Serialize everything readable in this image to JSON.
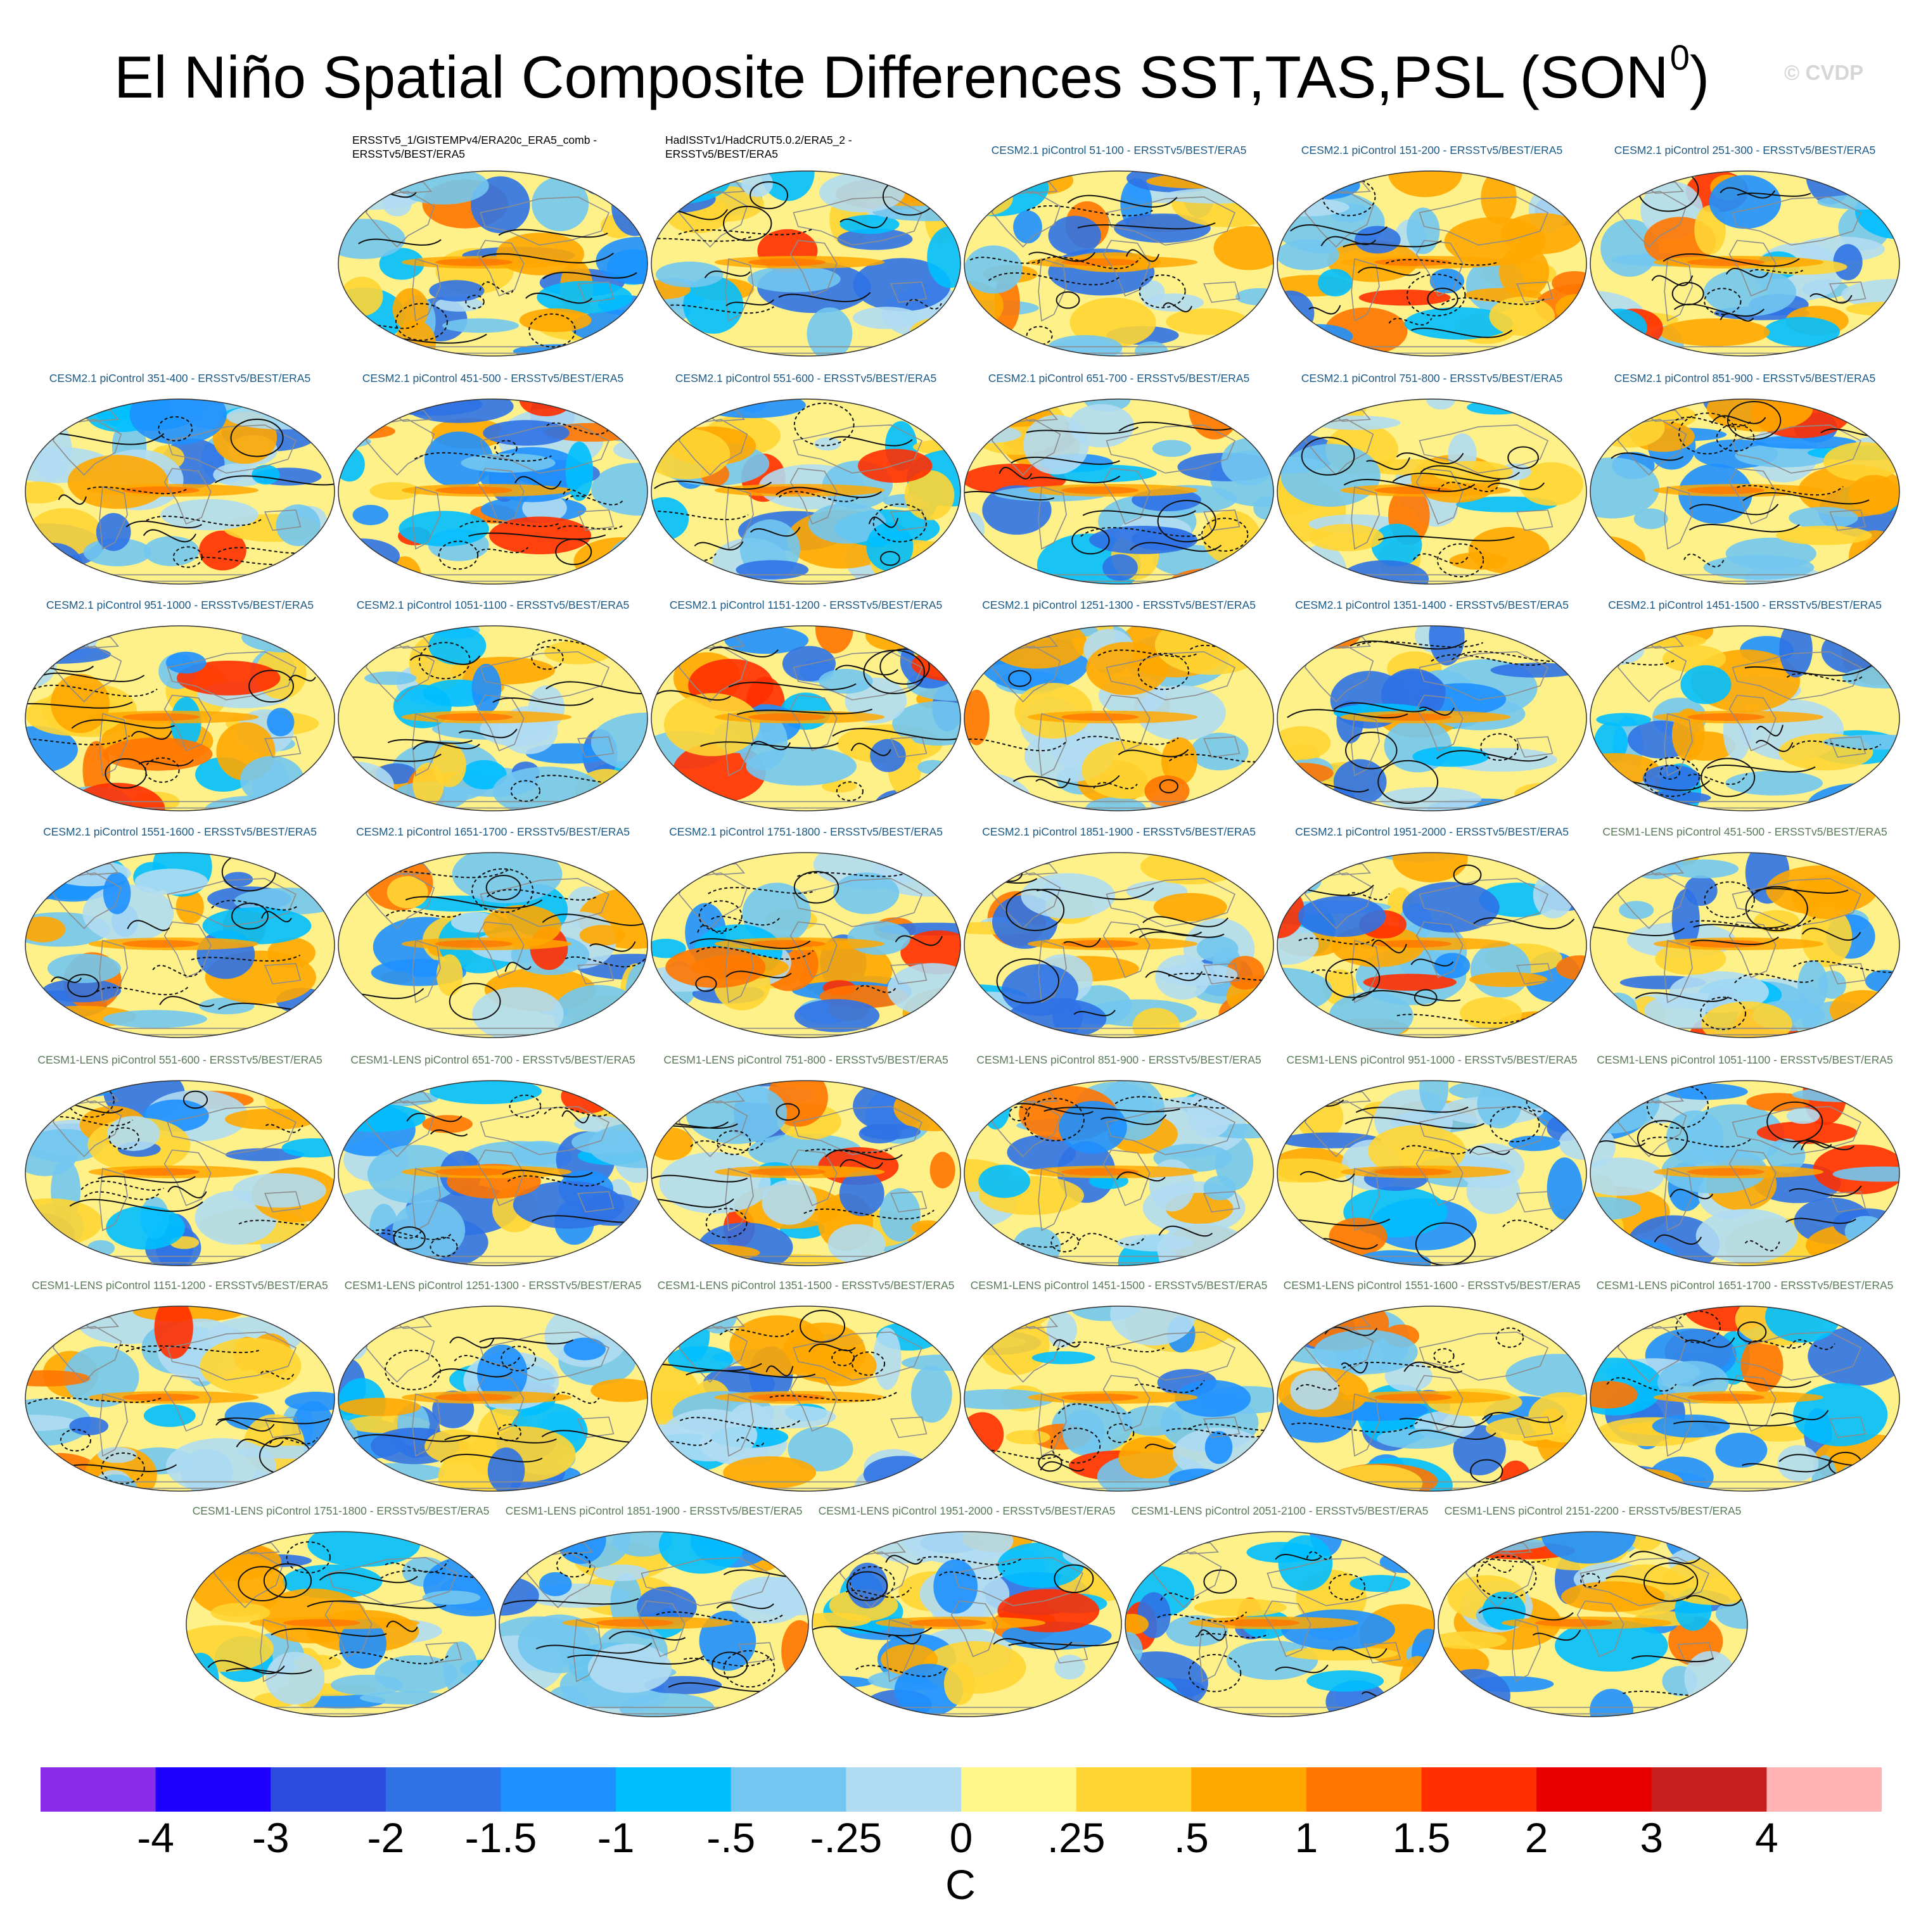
{
  "title": "El Niño Spatial Composite Differences SST,TAS,PSL (SON",
  "title_superscript": "0",
  "title_suffix": ")",
  "watermark": "© CVDP",
  "colors": {
    "cesm2_title": "#1c5a86",
    "cesm1_title": "#5a7a5a",
    "obs_title": "#000000",
    "ocean_base": "#fef18a",
    "land": "#ffffff",
    "coast": "#8c8c8c",
    "contour": "#111111"
  },
  "panels": [
    {
      "title": "",
      "empty": true
    },
    {
      "title": "ERSSTv5_1/GISTEMPv4/ERA20c_ERA5_comb - ERSSTv5/BEST/ERA5",
      "group": "obs",
      "seed": 11
    },
    {
      "title": "HadISSTv1/HadCRUT5.0.2/ERA5_2 - ERSSTv5/BEST/ERA5",
      "group": "obs",
      "seed": 12
    },
    {
      "title": "CESM2.1 piControl 51-100 - ERSSTv5/BEST/ERA5",
      "group": "cesm2",
      "seed": 13
    },
    {
      "title": "CESM2.1 piControl 151-200 - ERSSTv5/BEST/ERA5",
      "group": "cesm2",
      "seed": 14
    },
    {
      "title": "CESM2.1 piControl 251-300 - ERSSTv5/BEST/ERA5",
      "group": "cesm2",
      "seed": 15
    },
    {
      "title": "CESM2.1 piControl 351-400 - ERSSTv5/BEST/ERA5",
      "group": "cesm2",
      "seed": 16
    },
    {
      "title": "CESM2.1 piControl 451-500 - ERSSTv5/BEST/ERA5",
      "group": "cesm2",
      "seed": 17
    },
    {
      "title": "CESM2.1 piControl 551-600 - ERSSTv5/BEST/ERA5",
      "group": "cesm2",
      "seed": 18
    },
    {
      "title": "CESM2.1 piControl 651-700 - ERSSTv5/BEST/ERA5",
      "group": "cesm2",
      "seed": 19
    },
    {
      "title": "CESM2.1 piControl 751-800 - ERSSTv5/BEST/ERA5",
      "group": "cesm2",
      "seed": 20
    },
    {
      "title": "CESM2.1 piControl 851-900 - ERSSTv5/BEST/ERA5",
      "group": "cesm2",
      "seed": 21
    },
    {
      "title": "CESM2.1 piControl 951-1000 - ERSSTv5/BEST/ERA5",
      "group": "cesm2",
      "seed": 22
    },
    {
      "title": "CESM2.1 piControl 1051-1100 - ERSSTv5/BEST/ERA5",
      "group": "cesm2",
      "seed": 23
    },
    {
      "title": "CESM2.1 piControl 1151-1200 - ERSSTv5/BEST/ERA5",
      "group": "cesm2",
      "seed": 24
    },
    {
      "title": "CESM2.1 piControl 1251-1300 - ERSSTv5/BEST/ERA5",
      "group": "cesm2",
      "seed": 25
    },
    {
      "title": "CESM2.1 piControl 1351-1400 - ERSSTv5/BEST/ERA5",
      "group": "cesm2",
      "seed": 26
    },
    {
      "title": "CESM2.1 piControl 1451-1500 - ERSSTv5/BEST/ERA5",
      "group": "cesm2",
      "seed": 27
    },
    {
      "title": "CESM2.1 piControl 1551-1600 - ERSSTv5/BEST/ERA5",
      "group": "cesm2",
      "seed": 28
    },
    {
      "title": "CESM2.1 piControl 1651-1700 - ERSSTv5/BEST/ERA5",
      "group": "cesm2",
      "seed": 29
    },
    {
      "title": "CESM2.1 piControl 1751-1800 - ERSSTv5/BEST/ERA5",
      "group": "cesm2",
      "seed": 30
    },
    {
      "title": "CESM2.1 piControl 1851-1900 - ERSSTv5/BEST/ERA5",
      "group": "cesm2",
      "seed": 31
    },
    {
      "title": "CESM2.1 piControl 1951-2000 - ERSSTv5/BEST/ERA5",
      "group": "cesm2",
      "seed": 32
    },
    {
      "title": "CESM1-LENS piControl 451-500 - ERSSTv5/BEST/ERA5",
      "group": "cesm1",
      "seed": 33
    },
    {
      "title": "CESM1-LENS piControl 551-600 - ERSSTv5/BEST/ERA5",
      "group": "cesm1",
      "seed": 34
    },
    {
      "title": "CESM1-LENS piControl 651-700 - ERSSTv5/BEST/ERA5",
      "group": "cesm1",
      "seed": 35
    },
    {
      "title": "CESM1-LENS piControl 751-800 - ERSSTv5/BEST/ERA5",
      "group": "cesm1",
      "seed": 36
    },
    {
      "title": "CESM1-LENS piControl 851-900 - ERSSTv5/BEST/ERA5",
      "group": "cesm1",
      "seed": 37
    },
    {
      "title": "CESM1-LENS piControl 951-1000 - ERSSTv5/BEST/ERA5",
      "group": "cesm1",
      "seed": 38
    },
    {
      "title": "CESM1-LENS piControl 1051-1100 - ERSSTv5/BEST/ERA5",
      "group": "cesm1",
      "seed": 39
    },
    {
      "title": "CESM1-LENS piControl 1151-1200 - ERSSTv5/BEST/ERA5",
      "group": "cesm1",
      "seed": 40
    },
    {
      "title": "CESM1-LENS piControl 1251-1300 - ERSSTv5/BEST/ERA5",
      "group": "cesm1",
      "seed": 41
    },
    {
      "title": "CESM1-LENS piControl 1351-1500 - ERSSTv5/BEST/ERA5",
      "group": "cesm1",
      "seed": 42
    },
    {
      "title": "CESM1-LENS piControl 1451-1500 - ERSSTv5/BEST/ERA5",
      "group": "cesm1",
      "seed": 43
    },
    {
      "title": "CESM1-LENS piControl 1551-1600 - ERSSTv5/BEST/ERA5",
      "group": "cesm1",
      "seed": 44
    },
    {
      "title": "CESM1-LENS piControl 1651-1700 - ERSSTv5/BEST/ERA5",
      "group": "cesm1",
      "seed": 45
    },
    {
      "title": "CESM1-LENS piControl 1751-1800 - ERSSTv5/BEST/ERA5",
      "group": "cesm1",
      "seed": 46
    },
    {
      "title": "CESM1-LENS piControl 1851-1900 - ERSSTv5/BEST/ERA5",
      "group": "cesm1",
      "seed": 47
    },
    {
      "title": "CESM1-LENS piControl 1951-2000 - ERSSTv5/BEST/ERA5",
      "group": "cesm1",
      "seed": 48
    },
    {
      "title": "CESM1-LENS piControl 2051-2100 - ERSSTv5/BEST/ERA5",
      "group": "cesm1",
      "seed": 49
    },
    {
      "title": "CESM1-LENS piControl 2151-2200 - ERSSTv5/BEST/ERA5",
      "group": "cesm1",
      "seed": 50
    }
  ],
  "colorbar": {
    "units": "C",
    "labels": [
      "-4",
      "-3",
      "-2",
      "-1.5",
      "-1",
      "-.5",
      "-.25",
      "0",
      ".25",
      ".5",
      "1",
      "1.5",
      "2",
      "3",
      "4"
    ],
    "colors": [
      "#8a2be8",
      "#1e00ff",
      "#2c4ce0",
      "#2f72e6",
      "#1e90ff",
      "#00bfff",
      "#72c6f0",
      "#b0dcf2",
      "#fff68a",
      "#ffd533",
      "#ffa800",
      "#ff7600",
      "#ff2f00",
      "#e80000",
      "#c81e1e",
      "#ffb3b3"
    ]
  }
}
